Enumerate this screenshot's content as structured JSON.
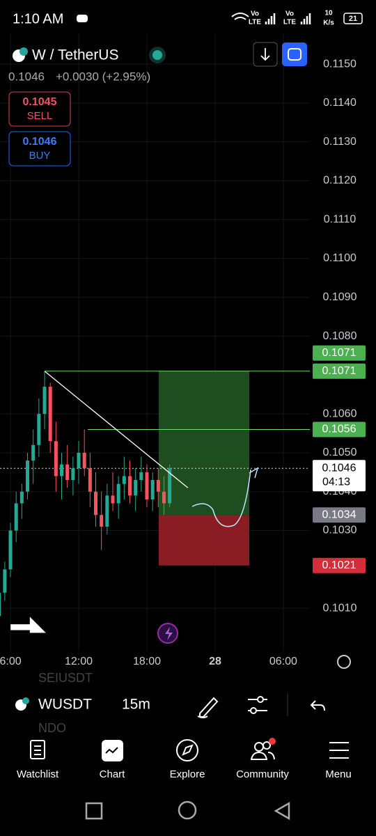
{
  "status_bar": {
    "time": "1:10 AM",
    "sim1": [
      "Vo",
      "LTE"
    ],
    "sim2": [
      "Vo",
      "LTE"
    ],
    "speed": [
      "10",
      "K/s"
    ],
    "battery": "21"
  },
  "header": {
    "symbol": "W / TetherUS",
    "price": 0.1046,
    "change": "+0.0030 (+2.95%)",
    "sell": {
      "price": 0.1045,
      "label": "SELL"
    },
    "buy": {
      "price": 0.1046,
      "label": "BUY"
    }
  },
  "chart_data": {
    "type": "candlestick",
    "x": [
      5,
      5.5,
      6,
      6.5,
      7,
      7.5,
      8,
      8.5,
      9,
      9.5,
      10,
      10.5,
      11,
      11.5,
      12,
      12.5,
      13,
      13.5,
      14,
      14.5,
      15,
      15.5,
      16,
      16.5,
      17,
      17.5,
      18,
      18.5,
      19,
      19.5,
      20
    ],
    "open": [
      0.1008,
      0.1014,
      0.102,
      0.103,
      0.1037,
      0.104,
      0.1048,
      0.1052,
      0.106,
      0.1067,
      0.1053,
      0.1044,
      0.1047,
      0.1043,
      0.1046,
      0.105,
      0.1046,
      0.104,
      0.1034,
      0.1031,
      0.1039,
      0.1037,
      0.1042,
      0.1044,
      0.1039,
      0.1043,
      0.1045,
      0.1038,
      0.1043,
      0.104,
      0.1037
    ],
    "high": [
      0.1015,
      0.1022,
      0.1032,
      0.104,
      0.1042,
      0.105,
      0.1056,
      0.1064,
      0.1071,
      0.1068,
      0.1058,
      0.105,
      0.1052,
      0.1049,
      0.1053,
      0.1056,
      0.105,
      0.1045,
      0.104,
      0.1042,
      0.1045,
      0.1044,
      0.1049,
      0.1048,
      0.1046,
      0.1049,
      0.1047,
      0.1045,
      0.1046,
      0.1044,
      0.1047
    ],
    "low": [
      0.1005,
      0.1012,
      0.1018,
      0.1027,
      0.1033,
      0.1038,
      0.1042,
      0.1049,
      0.1056,
      0.105,
      0.104,
      0.1038,
      0.1041,
      0.1039,
      0.1042,
      0.1044,
      0.1036,
      0.1031,
      0.1025,
      0.1029,
      0.1035,
      0.1033,
      0.1038,
      0.1037,
      0.1035,
      0.104,
      0.1036,
      0.1035,
      0.1036,
      0.1034,
      0.1036
    ],
    "close": [
      0.1014,
      0.102,
      0.103,
      0.1037,
      0.104,
      0.1048,
      0.1052,
      0.106,
      0.1067,
      0.1053,
      0.1044,
      0.1047,
      0.1043,
      0.1046,
      0.105,
      0.1046,
      0.104,
      0.1034,
      0.1031,
      0.1039,
      0.1037,
      0.1042,
      0.1044,
      0.1039,
      0.1043,
      0.1045,
      0.1038,
      0.1043,
      0.104,
      0.1037,
      0.1046
    ],
    "up_color": "#22ab94",
    "down_color": "#f7525f",
    "xlim": [
      5,
      32
    ],
    "xticks": [
      {
        "value": 6,
        "label": "6:00"
      },
      {
        "value": 12,
        "label": "12:00"
      },
      {
        "value": 18,
        "label": "18:00"
      },
      {
        "value": 24,
        "label": "28"
      },
      {
        "value": 30,
        "label": "06:00"
      }
    ],
    "ylim": [
      0.1,
      0.1158
    ],
    "yticks": [
      {
        "value": 0.115,
        "label": "0.1150"
      },
      {
        "value": 0.114,
        "label": "0.1140"
      },
      {
        "value": 0.113,
        "label": "0.1130"
      },
      {
        "value": 0.112,
        "label": "0.1120"
      },
      {
        "value": 0.111,
        "label": "0.1110"
      },
      {
        "value": 0.11,
        "label": "0.1100"
      },
      {
        "value": 0.109,
        "label": "0.1090"
      },
      {
        "value": 0.108,
        "label": "0.1080"
      },
      {
        "value": 0.106,
        "label": "0.1060"
      },
      {
        "value": 0.105,
        "label": "0.1050"
      },
      {
        "value": 0.104,
        "label": "0.1040"
      },
      {
        "value": 0.103,
        "label": "0.1030"
      },
      {
        "value": 0.101,
        "label": "0.1010"
      }
    ],
    "current_price": 0.1046,
    "countdown": "04:13",
    "target_line": 0.1071,
    "target": 0.1071,
    "resistance": 0.1056,
    "entry": 0.1034,
    "stop": 0.1021,
    "trendline": {
      "x": [
        9,
        21.6
      ],
      "y": [
        0.1071,
        0.1041
      ]
    }
  },
  "toolbar": {
    "symbol": "WUSDT",
    "interval": "15m",
    "ghost_above": "SEIUSDT",
    "ghost_below": "NDQ"
  },
  "nav": [
    "Watchlist",
    "Chart",
    "Explore",
    "Community",
    "Menu"
  ]
}
